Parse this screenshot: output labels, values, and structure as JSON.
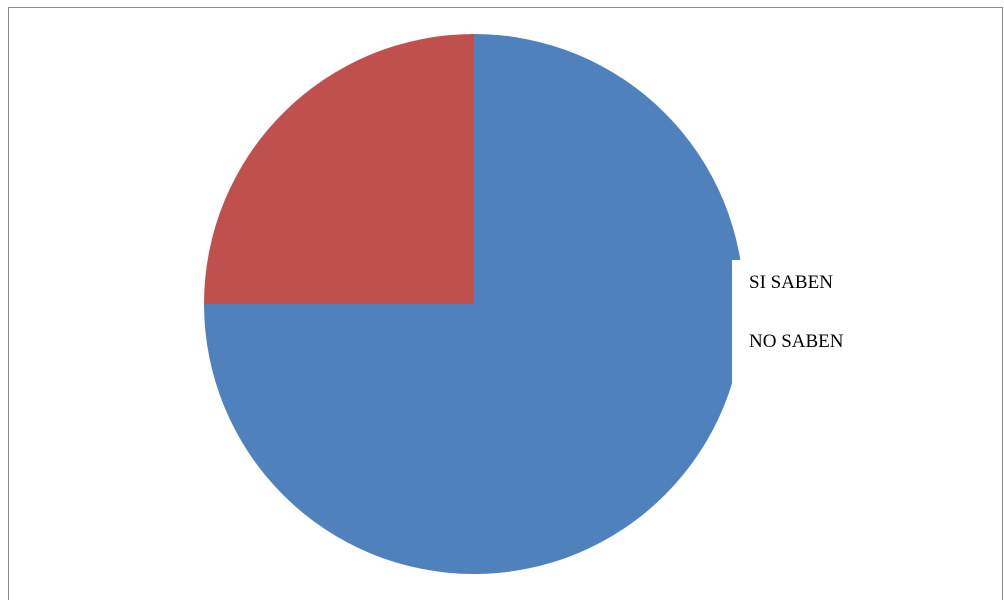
{
  "chart_data": {
    "type": "pie",
    "categories": [
      "SI SABEN",
      "NO SABEN"
    ],
    "values": [
      75,
      25
    ],
    "colors": [
      "#4f81bd",
      "#c0504d"
    ],
    "legend": {
      "placement": "right",
      "entries": [
        "SI SABEN",
        "NO SABEN"
      ]
    },
    "start_angle_deg": 0,
    "direction": "clockwise",
    "title": ""
  }
}
